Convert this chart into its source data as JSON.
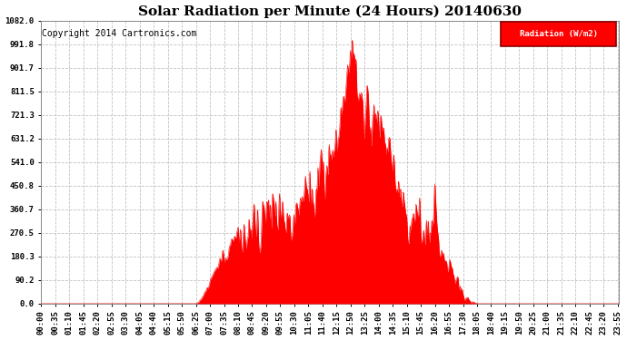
{
  "title": "Solar Radiation per Minute (24 Hours) 20140630",
  "copyright": "Copyright 2014 Cartronics.com",
  "legend_label": "Radiation (W/m2)",
  "ymax": 1082.0,
  "yticks": [
    0.0,
    90.2,
    180.3,
    270.5,
    360.7,
    450.8,
    541.0,
    631.2,
    721.3,
    811.5,
    901.7,
    991.8,
    1082.0
  ],
  "fill_color": "#FF0000",
  "bg_color": "#FFFFFF",
  "grid_color": "#BBBBBB",
  "title_fontsize": 11,
  "copyright_fontsize": 7,
  "tick_fontsize": 6.5,
  "xtick_labels": [
    "00:00",
    "00:35",
    "01:10",
    "01:45",
    "02:20",
    "02:55",
    "03:30",
    "04:05",
    "04:40",
    "05:15",
    "05:50",
    "06:25",
    "07:00",
    "07:35",
    "08:10",
    "08:45",
    "09:20",
    "09:55",
    "10:30",
    "11:05",
    "11:40",
    "12:15",
    "12:50",
    "13:25",
    "14:00",
    "14:35",
    "15:10",
    "15:45",
    "16:20",
    "16:55",
    "17:30",
    "18:05",
    "18:40",
    "19:15",
    "19:50",
    "20:25",
    "21:00",
    "21:35",
    "22:10",
    "22:45",
    "23:20",
    "23:55"
  ]
}
